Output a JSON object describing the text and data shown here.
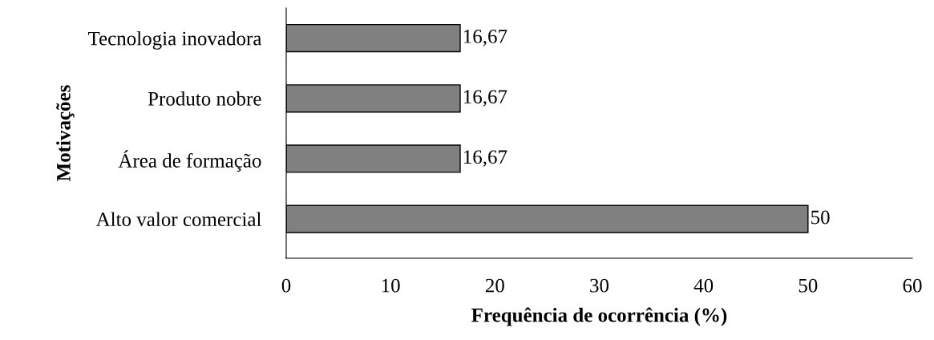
{
  "chart_data": {
    "type": "bar",
    "orientation": "horizontal",
    "categories": [
      "Tecnologia inovadora",
      "Produto nobre",
      "Área de formação",
      "Alto valor comercial"
    ],
    "values": [
      16.67,
      16.67,
      16.67,
      50
    ],
    "value_labels": [
      "16,67",
      "16,67",
      "16,67",
      "50"
    ],
    "color": "#808080",
    "xlim": [
      0,
      60
    ],
    "xticks": [
      0,
      10,
      20,
      30,
      40,
      50,
      60
    ],
    "xlabel": "Frequência de ocorrência (%)",
    "ylabel": "Motivações",
    "grid": false,
    "legend": false
  }
}
